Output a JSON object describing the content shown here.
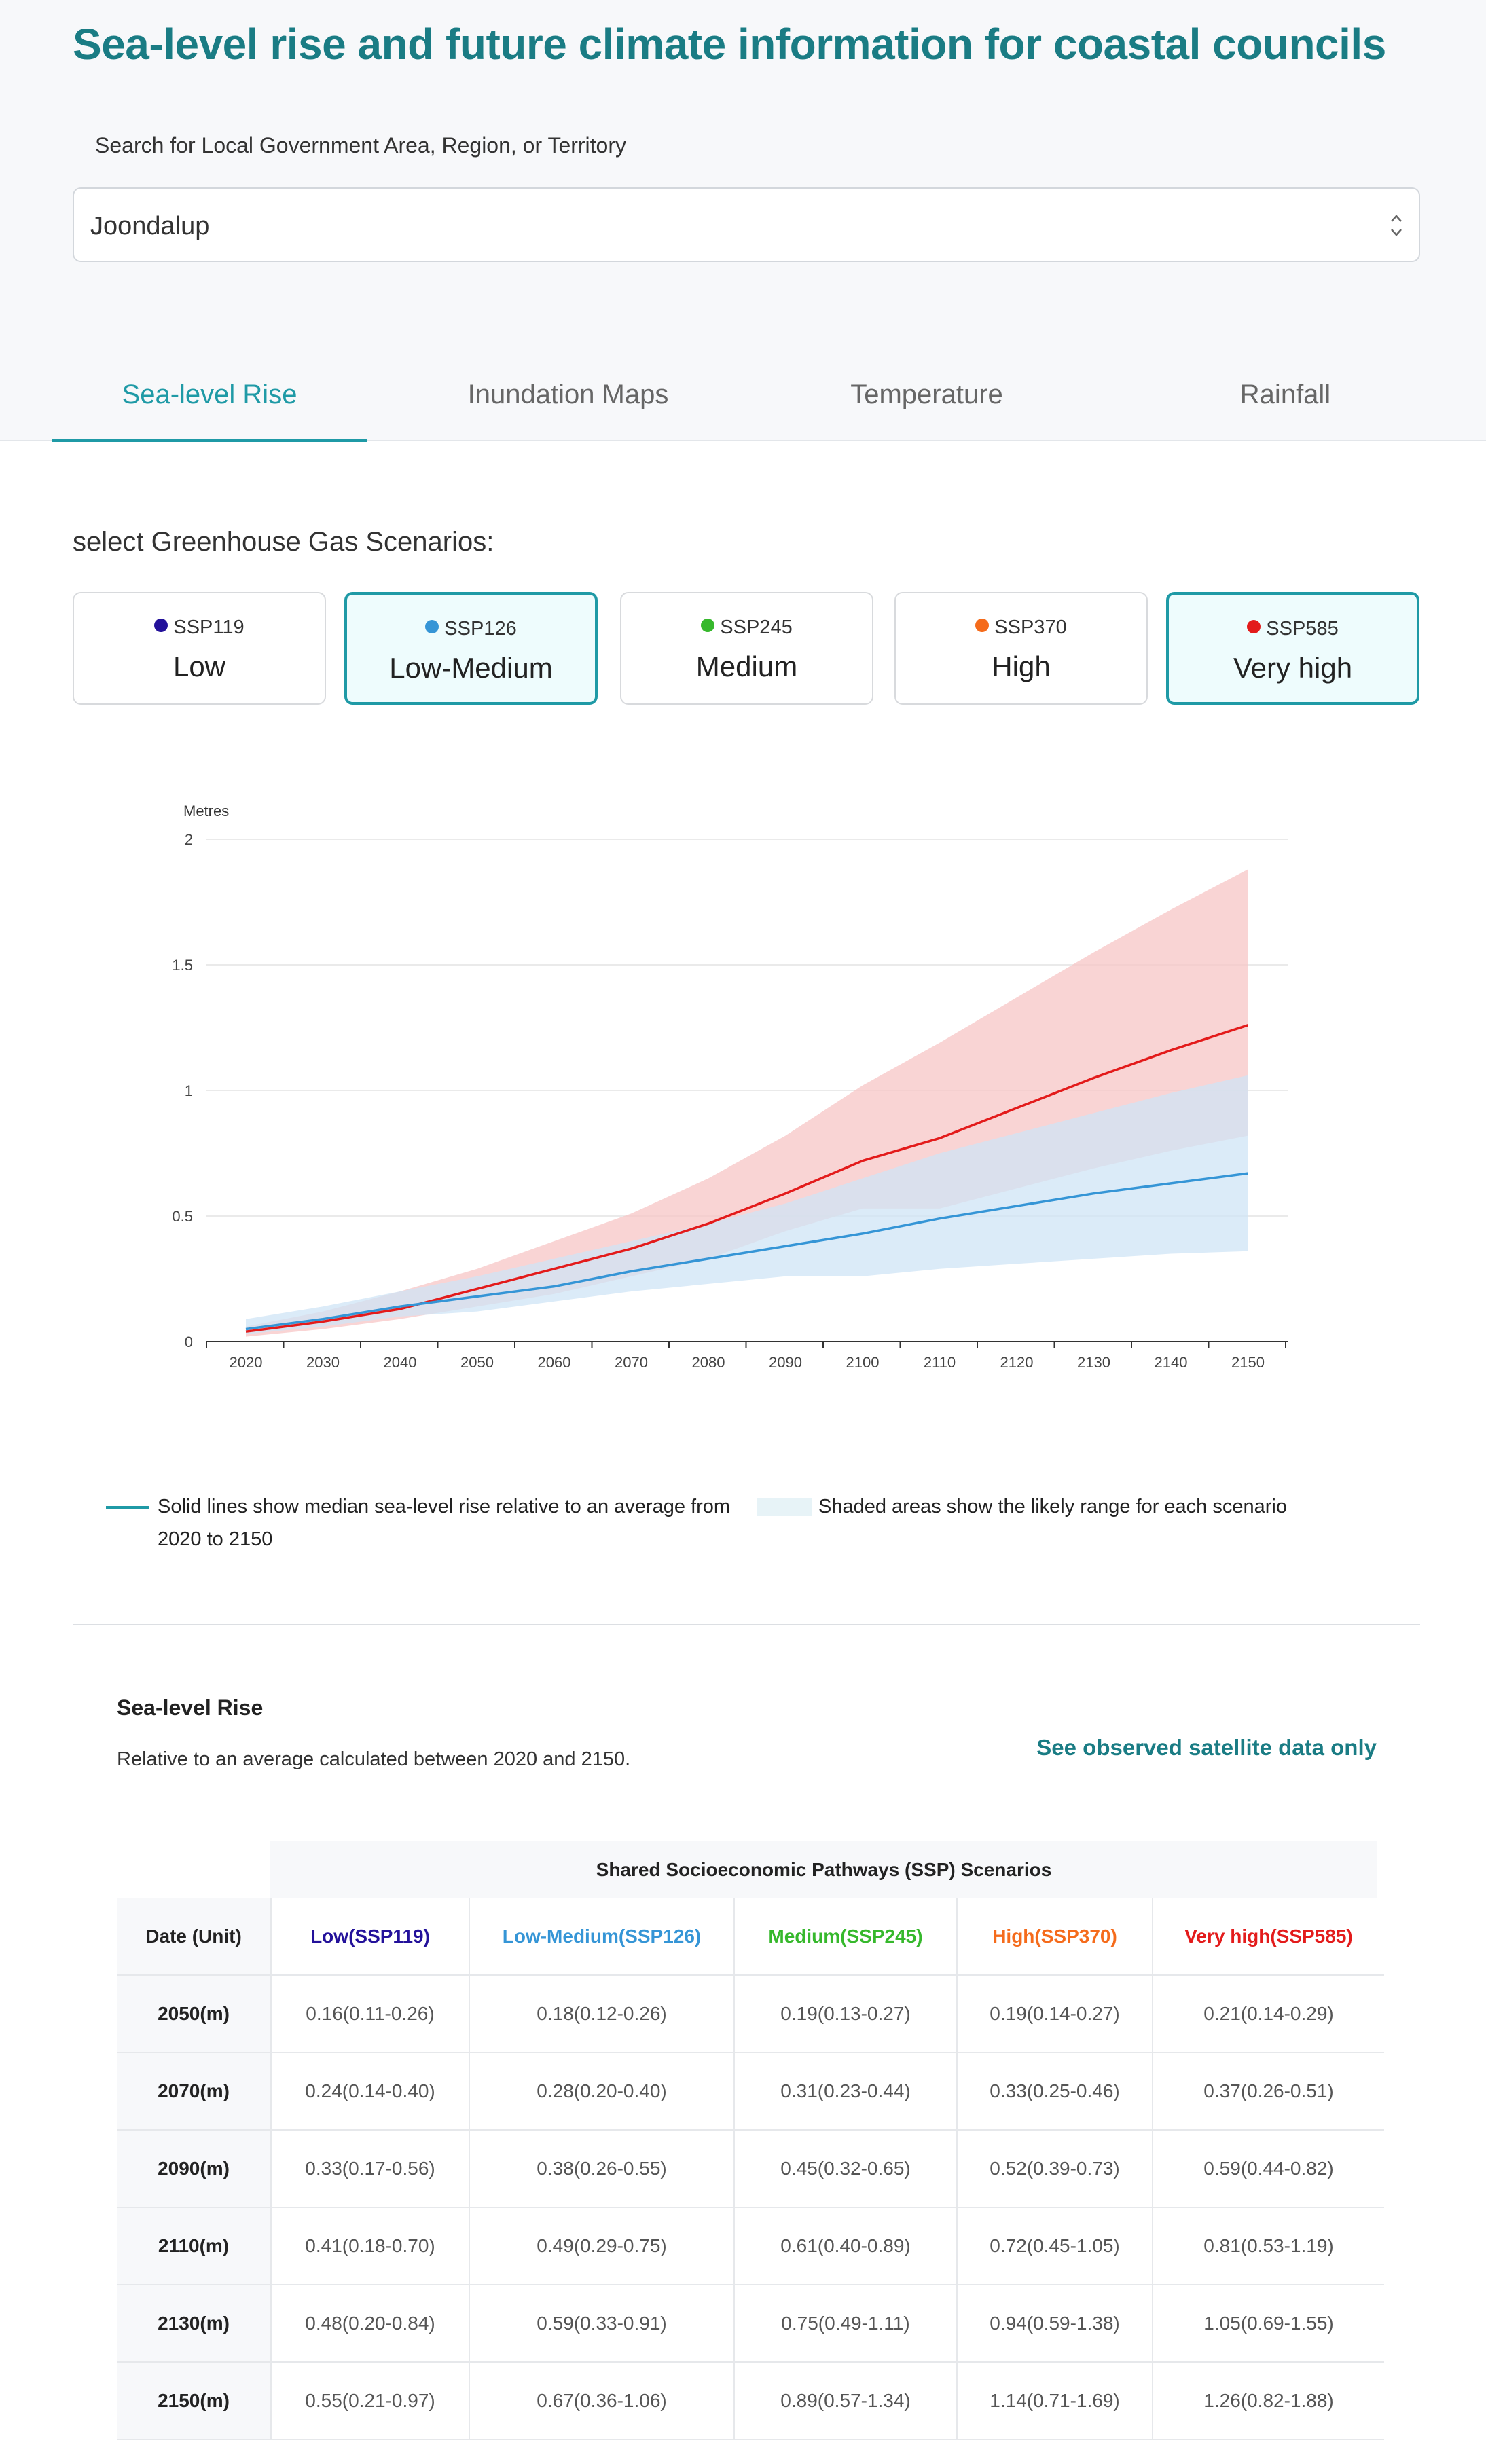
{
  "page": {
    "title": "Sea-level rise and future climate information for coastal councils"
  },
  "search": {
    "label": "Search for Local Government Area, Region, or Territory",
    "value": "Joondalup"
  },
  "tabs": [
    {
      "label": "Sea-level Rise",
      "active": true
    },
    {
      "label": "Inundation Maps",
      "active": false
    },
    {
      "label": "Temperature",
      "active": false
    },
    {
      "label": "Rainfall",
      "active": false
    }
  ],
  "scenarios": {
    "label": "select Greenhouse Gas Scenarios:",
    "items": [
      {
        "code": "SSP119",
        "name": "Low",
        "color": "#23119a",
        "selected": false
      },
      {
        "code": "SSP126",
        "name": "Low-Medium",
        "color": "#3595d6",
        "selected": true
      },
      {
        "code": "SSP245",
        "name": "Medium",
        "color": "#36b82c",
        "selected": false
      },
      {
        "code": "SSP370",
        "name": "High",
        "color": "#f56b1b",
        "selected": false
      },
      {
        "code": "SSP585",
        "name": "Very high",
        "color": "#e31b1b",
        "selected": true
      }
    ]
  },
  "chart_data": {
    "type": "line",
    "ylabel": "Metres",
    "ylim": [
      0,
      2
    ],
    "yticks": [
      "0",
      "0.5",
      "1",
      "1.5",
      "2"
    ],
    "x": [
      "2020",
      "2030",
      "2040",
      "2050",
      "2060",
      "2070",
      "2080",
      "2090",
      "2100",
      "2110",
      "2120",
      "2130",
      "2140",
      "2150"
    ],
    "grid": true,
    "series": [
      {
        "name": "Very high(SSP585)",
        "color": "#e31b1b",
        "band_color": "#f7c5c5",
        "median": [
          0.04,
          0.08,
          0.13,
          0.21,
          0.29,
          0.37,
          0.47,
          0.59,
          0.72,
          0.81,
          0.93,
          1.05,
          1.16,
          1.26
        ],
        "low": [
          0.02,
          0.05,
          0.09,
          0.14,
          0.19,
          0.26,
          0.33,
          0.44,
          0.53,
          0.53,
          0.61,
          0.69,
          0.76,
          0.82
        ],
        "high": [
          0.06,
          0.12,
          0.2,
          0.29,
          0.4,
          0.51,
          0.65,
          0.82,
          1.02,
          1.19,
          1.37,
          1.55,
          1.72,
          1.88
        ]
      },
      {
        "name": "Low-Medium(SSP126)",
        "color": "#3595d6",
        "band_color": "#cfe4f5",
        "median": [
          0.05,
          0.09,
          0.14,
          0.18,
          0.22,
          0.28,
          0.33,
          0.38,
          0.43,
          0.49,
          0.54,
          0.59,
          0.63,
          0.67
        ],
        "low": [
          0.03,
          0.06,
          0.1,
          0.12,
          0.16,
          0.2,
          0.23,
          0.26,
          0.26,
          0.29,
          0.31,
          0.33,
          0.35,
          0.36
        ],
        "high": [
          0.09,
          0.14,
          0.2,
          0.26,
          0.33,
          0.4,
          0.47,
          0.55,
          0.65,
          0.75,
          0.83,
          0.91,
          0.99,
          1.06
        ]
      }
    ]
  },
  "legend": {
    "line_text": "Solid lines show median sea-level rise relative to an average from 2020 to 2150",
    "band_text": "Shaded areas show the likely range for each scenario"
  },
  "slr": {
    "title": "Sea-level Rise",
    "subtitle": "Relative to an average calculated between 2020 and 2150.",
    "satellite_link": "See observed satellite data only"
  },
  "table": {
    "group_header": "Shared Socioeconomic Pathways (SSP) Scenarios",
    "date_header": "Date (Unit)",
    "columns": [
      {
        "label": "Low(SSP119)",
        "color": "#23119a"
      },
      {
        "label": "Low-Medium(SSP126)",
        "color": "#3595d6"
      },
      {
        "label": "Medium(SSP245)",
        "color": "#36b82c"
      },
      {
        "label": "High(SSP370)",
        "color": "#f56b1b"
      },
      {
        "label": "Very high(SSP585)",
        "color": "#e31b1b"
      }
    ],
    "rows": [
      {
        "date": "2050(m)",
        "values": [
          "0.16(0.11-0.26)",
          "0.18(0.12-0.26)",
          "0.19(0.13-0.27)",
          "0.19(0.14-0.27)",
          "0.21(0.14-0.29)"
        ]
      },
      {
        "date": "2070(m)",
        "values": [
          "0.24(0.14-0.40)",
          "0.28(0.20-0.40)",
          "0.31(0.23-0.44)",
          "0.33(0.25-0.46)",
          "0.37(0.26-0.51)"
        ]
      },
      {
        "date": "2090(m)",
        "values": [
          "0.33(0.17-0.56)",
          "0.38(0.26-0.55)",
          "0.45(0.32-0.65)",
          "0.52(0.39-0.73)",
          "0.59(0.44-0.82)"
        ]
      },
      {
        "date": "2110(m)",
        "values": [
          "0.41(0.18-0.70)",
          "0.49(0.29-0.75)",
          "0.61(0.40-0.89)",
          "0.72(0.45-1.05)",
          "0.81(0.53-1.19)"
        ]
      },
      {
        "date": "2130(m)",
        "values": [
          "0.48(0.20-0.84)",
          "0.59(0.33-0.91)",
          "0.75(0.49-1.11)",
          "0.94(0.59-1.38)",
          "1.05(0.69-1.55)"
        ]
      },
      {
        "date": "2150(m)",
        "values": [
          "0.55(0.21-0.97)",
          "0.67(0.36-1.06)",
          "0.89(0.57-1.34)",
          "1.14(0.71-1.69)",
          "1.26(0.82-1.88)"
        ]
      }
    ]
  }
}
